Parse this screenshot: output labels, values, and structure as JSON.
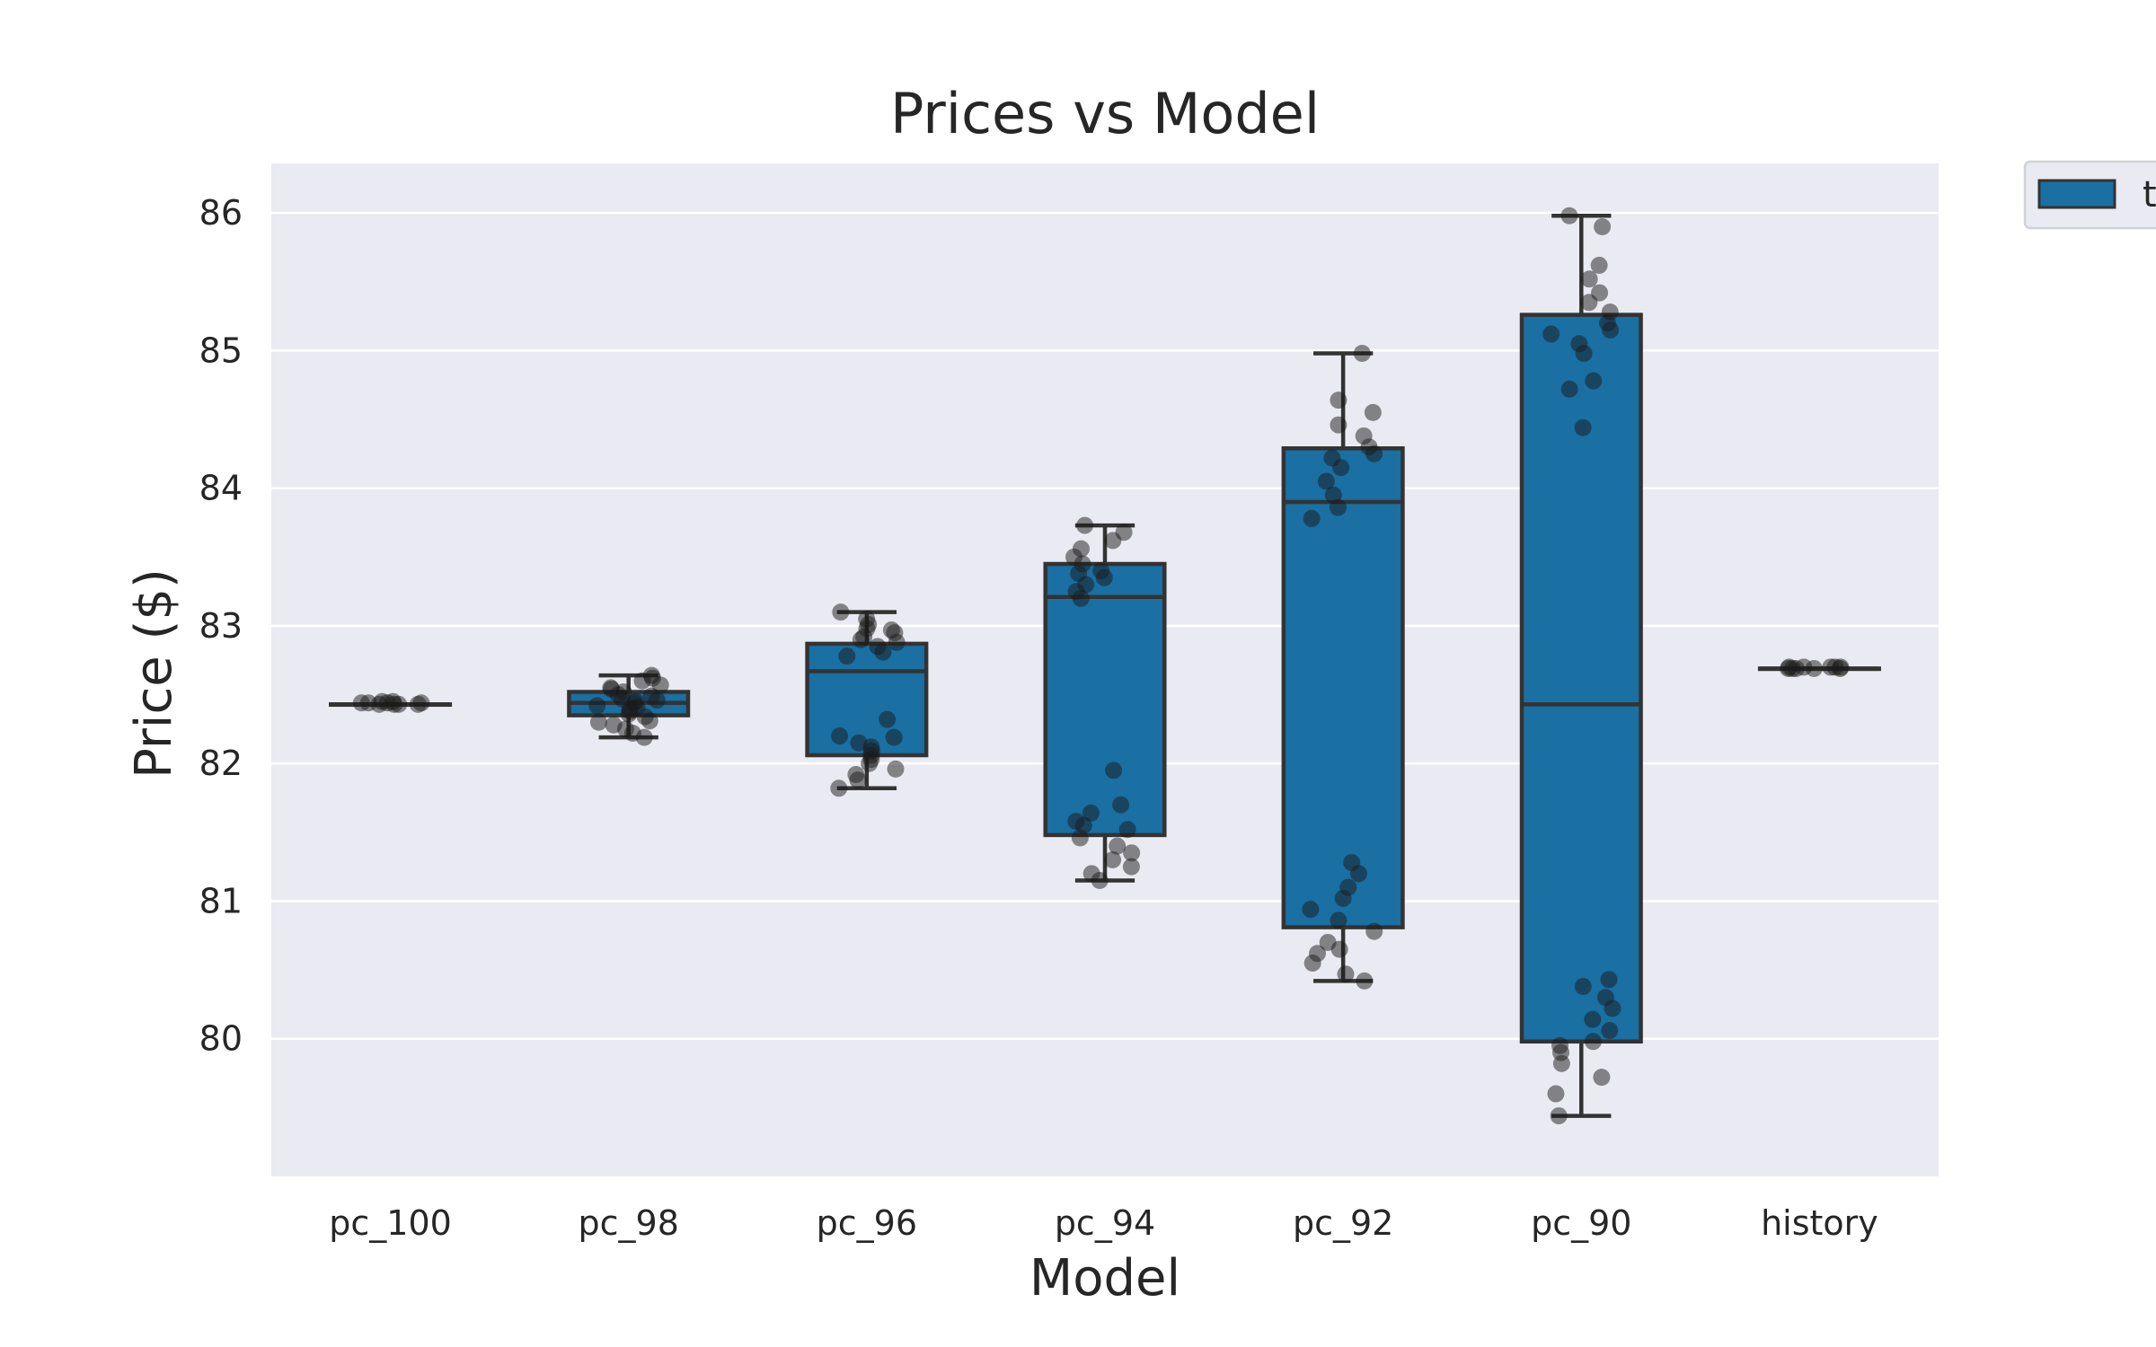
{
  "chart_data": {
    "type": "box",
    "title": "Prices vs Model",
    "xlabel": "Model",
    "ylabel": "Price ($)",
    "categories": [
      "pc_100",
      "pc_98",
      "pc_96",
      "pc_94",
      "pc_92",
      "pc_90",
      "history"
    ],
    "y_ticks": [
      80,
      81,
      82,
      83,
      84,
      85,
      86
    ],
    "ylim": [
      79.0,
      86.36
    ],
    "grid": true,
    "legend": {
      "placement": "outside-top-right",
      "entries": [
        {
          "label": "t",
          "color": "#1a6fa3"
        }
      ]
    },
    "colors": {
      "box_fill": "#1a6fa3",
      "box_edge": "#333333",
      "background": "#eaeaf2",
      "grid": "#ffffff",
      "points": "#1a1a1a"
    },
    "series": [
      {
        "category": "pc_100",
        "whislo": 82.43,
        "q1": 82.43,
        "median": 82.43,
        "q3": 82.43,
        "whishi": 82.43,
        "points": [
          82.43,
          82.44,
          82.43,
          82.45,
          82.44,
          82.43,
          82.44,
          82.43,
          82.45,
          82.44
        ]
      },
      {
        "category": "pc_98",
        "whislo": 82.19,
        "q1": 82.35,
        "median": 82.44,
        "q3": 82.52,
        "whishi": 82.64,
        "points": [
          82.19,
          82.22,
          82.25,
          82.28,
          82.31,
          82.34,
          82.36,
          82.38,
          82.4,
          82.42,
          82.44,
          82.45,
          82.47,
          82.49,
          82.5,
          82.52,
          82.54,
          82.57,
          82.6,
          82.62,
          82.64,
          82.3,
          82.41,
          82.46,
          82.55
        ]
      },
      {
        "category": "pc_96",
        "whislo": 81.82,
        "q1": 82.06,
        "median": 82.67,
        "q3": 82.87,
        "whishi": 83.1,
        "points": [
          81.82,
          81.88,
          81.92,
          81.96,
          82.0,
          82.03,
          82.06,
          82.09,
          82.12,
          82.15,
          82.19,
          82.32,
          82.78,
          82.81,
          82.85,
          82.88,
          82.92,
          82.95,
          82.98,
          83.01,
          83.05,
          83.1,
          82.2,
          82.9,
          82.97
        ]
      },
      {
        "category": "pc_94",
        "whislo": 81.15,
        "q1": 81.48,
        "median": 83.21,
        "q3": 83.45,
        "whishi": 83.73,
        "points": [
          81.15,
          81.2,
          81.25,
          81.3,
          81.35,
          81.4,
          81.46,
          81.52,
          81.58,
          81.64,
          81.7,
          81.95,
          83.2,
          83.25,
          83.3,
          83.35,
          83.4,
          83.45,
          83.5,
          83.56,
          83.62,
          83.68,
          83.73,
          81.55,
          83.38
        ]
      },
      {
        "category": "pc_92",
        "whislo": 80.42,
        "q1": 80.81,
        "median": 83.9,
        "q3": 84.29,
        "whishi": 84.98,
        "points": [
          80.42,
          80.47,
          80.55,
          80.62,
          80.7,
          80.78,
          80.86,
          80.94,
          81.02,
          81.1,
          81.2,
          81.28,
          83.78,
          83.86,
          83.95,
          84.05,
          84.15,
          84.22,
          84.3,
          84.38,
          84.46,
          84.55,
          84.64,
          84.98,
          80.65,
          84.25
        ]
      },
      {
        "category": "pc_90",
        "whislo": 79.44,
        "q1": 79.98,
        "median": 82.43,
        "q3": 85.26,
        "whishi": 85.98,
        "points": [
          79.44,
          79.6,
          79.72,
          79.82,
          79.9,
          79.98,
          80.06,
          80.14,
          80.22,
          80.3,
          80.38,
          80.43,
          84.44,
          84.72,
          84.78,
          84.98,
          85.05,
          85.12,
          85.2,
          85.28,
          85.35,
          85.42,
          85.52,
          85.62,
          85.9,
          85.98,
          79.95,
          85.15
        ]
      },
      {
        "category": "history",
        "whislo": 82.69,
        "q1": 82.69,
        "median": 82.69,
        "q3": 82.69,
        "whishi": 82.69,
        "points": [
          82.69,
          82.7,
          82.69,
          82.7,
          82.69,
          82.7,
          82.69,
          82.7,
          82.69,
          82.7
        ]
      }
    ]
  }
}
